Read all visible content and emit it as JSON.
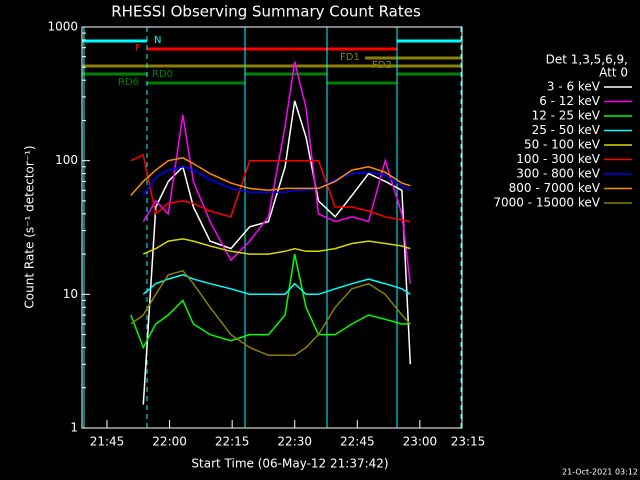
{
  "chart_data": {
    "type": "line",
    "title": "RHESSI Observing Summary Count Rates",
    "x_label": "Start Time (06-May-12 21:37:42)",
    "y_label": "Count Rate (s⁻¹ detector⁻¹)",
    "log_y": true,
    "ylim": [
      1,
      1000
    ],
    "yticks": [
      1,
      10,
      100,
      1000
    ],
    "xlim": [
      1.3,
      92.4
    ],
    "xticks": [
      {
        "value": 7.3,
        "label": "21:45"
      },
      {
        "value": 22.3,
        "label": "22:00"
      },
      {
        "value": 37.3,
        "label": "22:15"
      },
      {
        "value": 52.3,
        "label": "22:30"
      },
      {
        "value": 67.3,
        "label": "22:45"
      },
      {
        "value": 82.3,
        "label": "23:00"
      },
      {
        "value": 97.3,
        "label": "23:15"
      }
    ],
    "x": [
      13,
      16,
      19,
      22,
      25.5,
      28,
      32,
      37,
      41.5,
      46,
      50,
      52.3,
      55,
      58,
      62,
      66,
      70,
      74,
      78,
      80
    ],
    "legend_header": [
      "Det 1,3,5,6,9,",
      "Att 0"
    ],
    "flags": [
      "N",
      "F",
      "FD1",
      "FD2",
      "RD0",
      "RD6"
    ],
    "footer": "21-Oct-2021 03:12",
    "series": [
      {
        "name": "3 - 6 keV",
        "color": "#ffffff",
        "values": [
          null,
          1.5,
          45,
          70,
          90,
          45,
          25,
          22,
          32,
          35,
          90,
          280,
          150,
          50,
          38,
          55,
          80,
          70,
          60,
          3
        ]
      },
      {
        "name": "6 - 12 keV",
        "color": "#ff00ff",
        "values": [
          null,
          35,
          50,
          40,
          220,
          70,
          35,
          18,
          25,
          38,
          180,
          550,
          250,
          40,
          35,
          38,
          35,
          100,
          40,
          12
        ]
      },
      {
        "name": "12 - 25 keV",
        "color": "#00ff00",
        "values": [
          7,
          4,
          6,
          7,
          9,
          6,
          5,
          4.5,
          5,
          5,
          7,
          20,
          8,
          5,
          5,
          6,
          7,
          6.5,
          6,
          6
        ]
      },
      {
        "name": "25 - 50 keV",
        "color": "#00ffff",
        "values": [
          null,
          10,
          12,
          13,
          14,
          13,
          12,
          11,
          10,
          10,
          10,
          12,
          10,
          10,
          11,
          12,
          13,
          12,
          11,
          10
        ]
      },
      {
        "name": "50 - 100 keV",
        "color": "#d8d800",
        "values": [
          null,
          20,
          22,
          25,
          26,
          25,
          23,
          21,
          20,
          20,
          21,
          22,
          21,
          21,
          22,
          24,
          25,
          24,
          23,
          22
        ]
      },
      {
        "name": "100 - 300 keV",
        "color": "#ff0000",
        "values": [
          100,
          110,
          40,
          48,
          50,
          48,
          42,
          38,
          100,
          100,
          100,
          100,
          100,
          100,
          45,
          45,
          42,
          38,
          36,
          35
        ]
      },
      {
        "name": "300 - 800 keV",
        "color": "#0000ff",
        "values": [
          null,
          55,
          75,
          85,
          90,
          85,
          72,
          62,
          58,
          58,
          58,
          60,
          60,
          62,
          72,
          80,
          82,
          78,
          65,
          60
        ]
      },
      {
        "name": "800 - 7000 keV",
        "color": "#ff8c00",
        "values": [
          55,
          70,
          85,
          100,
          105,
          95,
          80,
          68,
          62,
          60,
          62,
          62,
          62,
          62,
          70,
          85,
          90,
          82,
          68,
          65
        ]
      },
      {
        "name": "7000 - 15000 keV",
        "color": "#8b8000",
        "values": [
          6,
          7,
          10,
          14,
          15,
          12,
          8,
          5,
          4,
          3.5,
          3.5,
          3.5,
          4,
          5,
          8,
          11,
          12,
          10,
          7,
          6
        ]
      }
    ]
  }
}
